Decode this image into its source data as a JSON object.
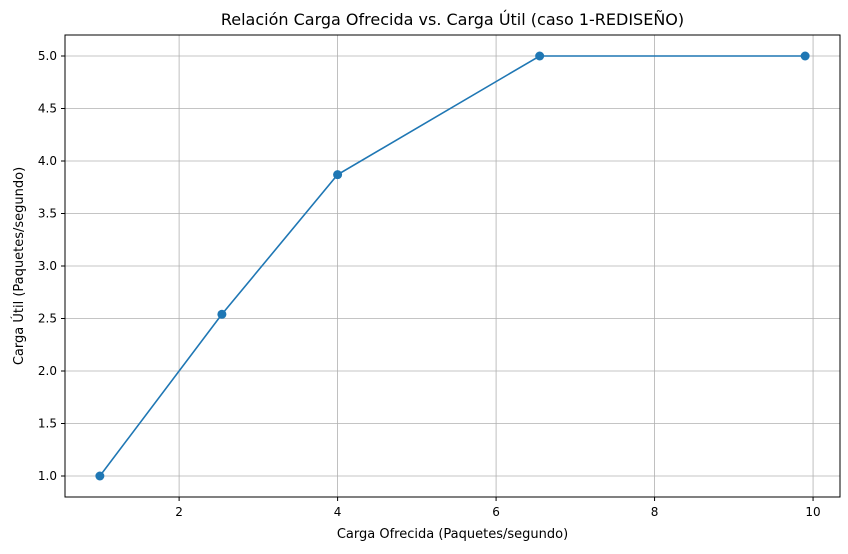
{
  "chart_data": {
    "type": "line",
    "title": "Relación Carga Ofrecida vs. Carga Útil (caso 1-REDISEÑO)",
    "xlabel": "Carga Ofrecida (Paquetes/segundo)",
    "ylabel": "Carga Útil (Paquetes/segundo)",
    "xlim": [
      0.56,
      10.34
    ],
    "ylim": [
      0.8,
      5.2
    ],
    "x_ticks": [
      2,
      4,
      6,
      8,
      10
    ],
    "y_ticks": [
      1.0,
      1.5,
      2.0,
      2.5,
      3.0,
      3.5,
      4.0,
      4.5,
      5.0
    ],
    "x_tick_labels": [
      "2",
      "4",
      "6",
      "8",
      "10"
    ],
    "y_tick_labels": [
      "1.0",
      "1.5",
      "2.0",
      "2.5",
      "3.0",
      "3.5",
      "4.0",
      "4.5",
      "5.0"
    ],
    "grid": true,
    "series": [
      {
        "color": "#1f77b4",
        "marker": "circle",
        "x": [
          1.0,
          2.54,
          4.0,
          6.55,
          9.9
        ],
        "y": [
          1.0,
          2.54,
          3.87,
          5.0,
          5.0
        ]
      }
    ]
  }
}
